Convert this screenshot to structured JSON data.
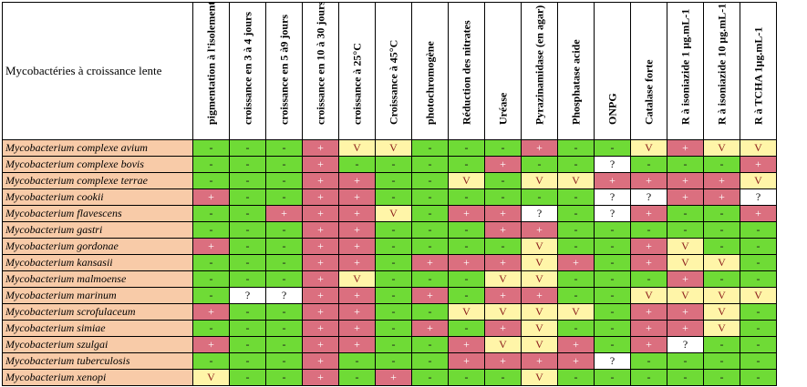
{
  "corner_label": "Mycobactéries à croissance lente",
  "columns": [
    "pigmentation à l'isolement",
    "croissance en 3 à 4 jours",
    "croissance en 5 à9 jours",
    "croissance en 10 à 30 jours",
    "croissance à 25°C",
    "Croissance à 45°C",
    "photochromogène",
    "Réduction des nitrates",
    "Uréase",
    "Pyrazinamidase (en agar)",
    "Phosphatase acide",
    "ONPG",
    "Catalase forte",
    "R à isoniazide 1 µg.mL-1",
    "R à isoniazide 10 µg.mL-1",
    "R à TCHA 1µg.mL-1"
  ],
  "rows": [
    {
      "name": "Mycobacterium complexe avium",
      "values": [
        "-",
        "-",
        "-",
        "+",
        "V",
        "V",
        "-",
        "-",
        "-",
        "+",
        "-",
        "-",
        "V",
        "+",
        "V",
        "V"
      ]
    },
    {
      "name": "Mycobacterium complexe bovis",
      "values": [
        "-",
        "-",
        "-",
        "+",
        "-",
        "-",
        "-",
        "-",
        "+",
        "-",
        "-",
        "?",
        "-",
        "-",
        "-",
        "+"
      ]
    },
    {
      "name": "Mycobacterium complexe terrae",
      "values": [
        "-",
        "-",
        "-",
        "+",
        "+",
        "-",
        "-",
        "V",
        "-",
        "V",
        "V",
        "+",
        "+",
        "+",
        "+",
        "V"
      ]
    },
    {
      "name": "Mycobacterium cookii",
      "values": [
        "+",
        "-",
        "-",
        "+",
        "+",
        "-",
        "-",
        "-",
        "-",
        "-",
        "-",
        "?",
        "?",
        "+",
        "+",
        "?"
      ]
    },
    {
      "name": "Mycobacterium flavescens",
      "values": [
        "-",
        "-",
        "+",
        "+",
        "+",
        "V",
        "-",
        "+",
        "+",
        "?",
        "-",
        "?",
        "+",
        "-",
        "-",
        "+"
      ]
    },
    {
      "name": "Mycobacterium gastri",
      "values": [
        "-",
        "-",
        "-",
        "+",
        "+",
        "-",
        "-",
        "-",
        "+",
        "+",
        "-",
        "-",
        "-",
        "-",
        "-",
        "-"
      ]
    },
    {
      "name": "Mycobacterium gordonae",
      "values": [
        "+",
        "-",
        "-",
        "+",
        "+",
        "-",
        "-",
        "-",
        "-",
        "V",
        "-",
        "-",
        "+",
        "V",
        "-",
        "-"
      ]
    },
    {
      "name": "Mycobacterium kansasii",
      "values": [
        "-",
        "-",
        "-",
        "+",
        "+",
        "-",
        "+",
        "+",
        "+",
        "V",
        "+",
        "-",
        "+",
        "V",
        "V",
        "-"
      ]
    },
    {
      "name": "Mycobacterium malmoense",
      "values": [
        "-",
        "-",
        "-",
        "+",
        "V",
        "-",
        "-",
        "-",
        "V",
        "V",
        "-",
        "-",
        "-",
        "+",
        "-",
        "-"
      ]
    },
    {
      "name": "Mycobacterium marinum",
      "values": [
        "-",
        "?",
        "?",
        "+",
        "+",
        "-",
        "+",
        "-",
        "+",
        "+",
        "-",
        "-",
        "V",
        "V",
        "V",
        "V"
      ]
    },
    {
      "name": "Mycobacterium scrofulaceum",
      "values": [
        "+",
        "-",
        "-",
        "+",
        "+",
        "-",
        "-",
        "V",
        "V",
        "V",
        "V",
        "-",
        "+",
        "+",
        "V",
        "-"
      ]
    },
    {
      "name": "Mycobacterium simiae",
      "values": [
        "-",
        "-",
        "-",
        "+",
        "+",
        "-",
        "+",
        "-",
        "+",
        "V",
        "-",
        "-",
        "+",
        "+",
        "V",
        "-"
      ]
    },
    {
      "name": "Mycobacterium szulgai",
      "values": [
        "+",
        "-",
        "-",
        "+",
        "+",
        "-",
        "-",
        "+",
        "V",
        "V",
        "+",
        "-",
        "+",
        "?",
        "-",
        "-"
      ]
    },
    {
      "name": "Mycobacterium tuberculosis",
      "values": [
        "-",
        "-",
        "-",
        "+",
        "-",
        "-",
        "-",
        "+",
        "+",
        "+",
        "+",
        "?",
        "-",
        "-",
        "-",
        "-"
      ]
    },
    {
      "name": "Mycobacterium xenopi",
      "values": [
        "V",
        "-",
        "-",
        "+",
        "-",
        "+",
        "-",
        "-",
        "-",
        "V",
        "-",
        "-",
        "-",
        "-",
        "-",
        "-"
      ]
    }
  ],
  "colors": {
    "minus": "#6fdb36",
    "plus": "#db6f7f",
    "variable": "#fff5a8",
    "unknown": "#ffffff",
    "name_bg": "#f8cba8"
  }
}
